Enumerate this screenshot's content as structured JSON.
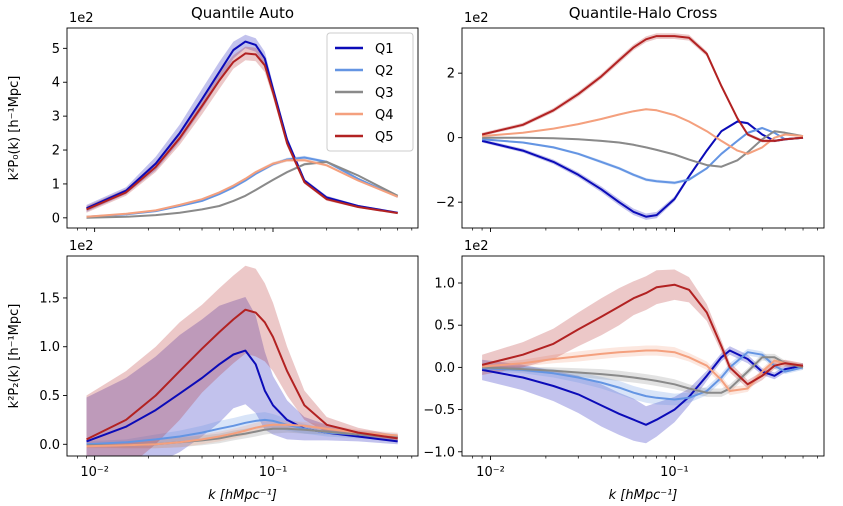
{
  "figure": {
    "title_left": "Quantile Auto",
    "title_right": "Quantile-Halo Cross",
    "xlabel": "k [hMpc⁻¹]",
    "ylabel_top": "k²P₀(k) [h⁻¹Mpc]",
    "ylabel_bottom": "k²P₂(k) [h⁻¹Mpc]",
    "scale_label": "1e2"
  },
  "legend": {
    "entries": [
      {
        "label": "Q1",
        "color": "#0b0bb8"
      },
      {
        "label": "Q2",
        "color": "#6495e3"
      },
      {
        "label": "Q3",
        "color": "#8a8a8a"
      },
      {
        "label": "Q4",
        "color": "#f4a07e"
      },
      {
        "label": "Q5",
        "color": "#b22222"
      }
    ]
  },
  "chart_data": [
    {
      "id": "auto-p0",
      "type": "line",
      "title": "Quantile Auto",
      "xlabel": "",
      "ylabel": "k²P₀(k) [h⁻¹Mpc]",
      "xscale": "log",
      "xlim": [
        0.007,
        0.65
      ],
      "ylim": [
        -0.3,
        5.6
      ],
      "xticks": [
        0.01,
        0.1
      ],
      "xtick_labels": [
        "",
        ""
      ],
      "yticks": [
        0,
        1,
        2,
        3,
        4,
        5
      ],
      "ytick_labels": [
        "0",
        "1",
        "2",
        "3",
        "4",
        "5"
      ],
      "scale_label": "1e2",
      "legend": "top-right",
      "x": [
        0.009,
        0.015,
        0.022,
        0.03,
        0.04,
        0.05,
        0.06,
        0.07,
        0.08,
        0.09,
        0.1,
        0.12,
        0.15,
        0.2,
        0.3,
        0.5
      ],
      "series": [
        {
          "name": "Q1",
          "color": "#0b0bb8",
          "values": [
            0.28,
            0.8,
            1.6,
            2.5,
            3.5,
            4.3,
            4.95,
            5.2,
            5.1,
            4.7,
            3.8,
            2.3,
            1.1,
            0.6,
            0.35,
            0.15
          ],
          "band": [
            0.1,
            0.1,
            0.2,
            0.25,
            0.3,
            0.3,
            0.25,
            0.2,
            0.2,
            0.2,
            0.15,
            0.1,
            0.05,
            0.05,
            0.03,
            0.02
          ]
        },
        {
          "name": "Q2",
          "color": "#6495e3",
          "values": [
            0.03,
            0.1,
            0.2,
            0.35,
            0.5,
            0.7,
            0.9,
            1.1,
            1.3,
            1.45,
            1.58,
            1.72,
            1.78,
            1.65,
            1.15,
            0.62
          ],
          "band": [
            0.01,
            0.01,
            0.02,
            0.02,
            0.03,
            0.03,
            0.04,
            0.04,
            0.04,
            0.05,
            0.05,
            0.05,
            0.05,
            0.04,
            0.03,
            0.02
          ]
        },
        {
          "name": "Q3",
          "color": "#8a8a8a",
          "values": [
            0.0,
            0.03,
            0.08,
            0.15,
            0.25,
            0.35,
            0.5,
            0.65,
            0.82,
            0.98,
            1.12,
            1.35,
            1.58,
            1.65,
            1.25,
            0.65
          ],
          "band": [
            0.01,
            0.01,
            0.01,
            0.02,
            0.02,
            0.02,
            0.03,
            0.03,
            0.03,
            0.03,
            0.03,
            0.04,
            0.04,
            0.04,
            0.03,
            0.02
          ]
        },
        {
          "name": "Q4",
          "color": "#f4a07e",
          "values": [
            0.03,
            0.12,
            0.22,
            0.38,
            0.55,
            0.75,
            0.95,
            1.15,
            1.35,
            1.48,
            1.6,
            1.7,
            1.7,
            1.55,
            1.1,
            0.62
          ],
          "band": [
            0.01,
            0.01,
            0.02,
            0.02,
            0.03,
            0.03,
            0.04,
            0.04,
            0.04,
            0.05,
            0.05,
            0.05,
            0.05,
            0.04,
            0.03,
            0.02
          ]
        },
        {
          "name": "Q5",
          "color": "#b22222",
          "values": [
            0.25,
            0.75,
            1.5,
            2.35,
            3.3,
            4.05,
            4.6,
            4.85,
            4.82,
            4.5,
            3.7,
            2.2,
            1.05,
            0.55,
            0.32,
            0.14
          ],
          "band": [
            0.1,
            0.1,
            0.15,
            0.2,
            0.25,
            0.25,
            0.2,
            0.2,
            0.2,
            0.2,
            0.15,
            0.1,
            0.05,
            0.05,
            0.03,
            0.02
          ]
        }
      ]
    },
    {
      "id": "cross-p0",
      "type": "line",
      "title": "Quantile-Halo Cross",
      "xlabel": "",
      "ylabel": "",
      "xscale": "log",
      "xlim": [
        0.007,
        0.65
      ],
      "ylim": [
        -2.8,
        3.4
      ],
      "xticks": [
        0.01,
        0.1
      ],
      "xtick_labels": [
        "",
        ""
      ],
      "yticks": [
        -2,
        0,
        2
      ],
      "ytick_labels": [
        "−2",
        "0",
        "2"
      ],
      "scale_label": "1e2",
      "x": [
        0.009,
        0.015,
        0.022,
        0.03,
        0.04,
        0.05,
        0.06,
        0.07,
        0.08,
        0.1,
        0.12,
        0.15,
        0.18,
        0.22,
        0.25,
        0.3,
        0.35,
        0.4,
        0.5
      ],
      "series": [
        {
          "name": "Q1",
          "color": "#0b0bb8",
          "values": [
            -0.1,
            -0.4,
            -0.75,
            -1.15,
            -1.6,
            -2.0,
            -2.3,
            -2.45,
            -2.4,
            -1.9,
            -1.2,
            -0.4,
            0.2,
            0.5,
            0.45,
            0.1,
            -0.1,
            -0.05,
            0.0
          ],
          "band": [
            0.05,
            0.06,
            0.07,
            0.08,
            0.09,
            0.1,
            0.1,
            0.1,
            0.1,
            0.08,
            0.06,
            0.05,
            0.04,
            0.04,
            0.04,
            0.04,
            0.03,
            0.03,
            0.03
          ]
        },
        {
          "name": "Q2",
          "color": "#6495e3",
          "values": [
            -0.05,
            -0.15,
            -0.3,
            -0.5,
            -0.75,
            -0.95,
            -1.15,
            -1.3,
            -1.35,
            -1.4,
            -1.3,
            -0.95,
            -0.5,
            -0.1,
            0.15,
            0.3,
            0.15,
            -0.05,
            0.0
          ],
          "band": [
            0.03,
            0.03,
            0.04,
            0.04,
            0.05,
            0.05,
            0.05,
            0.05,
            0.05,
            0.05,
            0.05,
            0.04,
            0.04,
            0.04,
            0.04,
            0.04,
            0.03,
            0.03,
            0.03
          ]
        },
        {
          "name": "Q3",
          "color": "#8a8a8a",
          "values": [
            0.0,
            0.0,
            -0.02,
            -0.05,
            -0.1,
            -0.15,
            -0.22,
            -0.3,
            -0.38,
            -0.52,
            -0.68,
            -0.85,
            -0.9,
            -0.7,
            -0.45,
            -0.05,
            0.2,
            0.15,
            0.05
          ],
          "band": [
            0.02,
            0.02,
            0.02,
            0.02,
            0.03,
            0.03,
            0.03,
            0.03,
            0.03,
            0.03,
            0.03,
            0.03,
            0.03,
            0.03,
            0.03,
            0.03,
            0.03,
            0.03,
            0.02
          ]
        },
        {
          "name": "Q4",
          "color": "#f4a07e",
          "values": [
            0.05,
            0.15,
            0.28,
            0.42,
            0.58,
            0.72,
            0.82,
            0.88,
            0.85,
            0.7,
            0.5,
            0.2,
            -0.1,
            -0.4,
            -0.5,
            -0.3,
            0.0,
            0.1,
            0.05
          ],
          "band": [
            0.02,
            0.02,
            0.02,
            0.03,
            0.03,
            0.03,
            0.03,
            0.03,
            0.03,
            0.03,
            0.03,
            0.03,
            0.03,
            0.03,
            0.03,
            0.03,
            0.03,
            0.03,
            0.02
          ]
        },
        {
          "name": "Q5",
          "color": "#b22222",
          "values": [
            0.1,
            0.4,
            0.85,
            1.35,
            1.9,
            2.4,
            2.8,
            3.05,
            3.15,
            3.15,
            3.1,
            2.6,
            1.6,
            0.6,
            0.1,
            -0.1,
            -0.1,
            -0.05,
            0.0
          ],
          "band": [
            0.05,
            0.06,
            0.07,
            0.08,
            0.08,
            0.09,
            0.09,
            0.09,
            0.09,
            0.09,
            0.09,
            0.08,
            0.07,
            0.06,
            0.05,
            0.05,
            0.04,
            0.04,
            0.03
          ]
        }
      ]
    },
    {
      "id": "auto-p2",
      "type": "line",
      "title": "",
      "xlabel": "k [hMpc⁻¹]",
      "ylabel": "k²P₂(k) [h⁻¹Mpc]",
      "xscale": "log",
      "xlim": [
        0.007,
        0.65
      ],
      "ylim": [
        -0.12,
        1.93
      ],
      "xticks": [
        0.01,
        0.1
      ],
      "xtick_labels": [
        "10⁻²",
        "10⁻¹"
      ],
      "yticks": [
        0,
        0.5,
        1.0,
        1.5
      ],
      "ytick_labels": [
        "0.0",
        "0.5",
        "1.0",
        "1.5"
      ],
      "scale_label": "1e2",
      "x": [
        0.009,
        0.015,
        0.022,
        0.03,
        0.04,
        0.05,
        0.06,
        0.07,
        0.08,
        0.09,
        0.1,
        0.12,
        0.15,
        0.2,
        0.3,
        0.5
      ],
      "series": [
        {
          "name": "Q1",
          "color": "#0b0bb8",
          "values": [
            0.03,
            0.18,
            0.35,
            0.52,
            0.68,
            0.82,
            0.92,
            0.96,
            0.82,
            0.55,
            0.4,
            0.25,
            0.16,
            0.12,
            0.08,
            0.03
          ],
          "band": [
            0.45,
            0.5,
            0.55,
            0.6,
            0.6,
            0.6,
            0.55,
            0.55,
            0.5,
            0.4,
            0.3,
            0.2,
            0.12,
            0.08,
            0.05,
            0.03
          ]
        },
        {
          "name": "Q2",
          "color": "#6495e3",
          "values": [
            0.0,
            0.02,
            0.05,
            0.08,
            0.12,
            0.16,
            0.19,
            0.22,
            0.24,
            0.25,
            0.24,
            0.2,
            0.16,
            0.12,
            0.1,
            0.08
          ],
          "band": [
            0.03,
            0.03,
            0.05,
            0.06,
            0.07,
            0.08,
            0.08,
            0.08,
            0.08,
            0.08,
            0.07,
            0.06,
            0.05,
            0.04,
            0.04,
            0.03
          ]
        },
        {
          "name": "Q3",
          "color": "#8a8a8a",
          "values": [
            -0.01,
            -0.01,
            0.0,
            0.02,
            0.04,
            0.06,
            0.09,
            0.11,
            0.13,
            0.15,
            0.16,
            0.16,
            0.15,
            0.13,
            0.1,
            0.07
          ],
          "band": [
            0.02,
            0.03,
            0.04,
            0.05,
            0.05,
            0.05,
            0.05,
            0.05,
            0.05,
            0.05,
            0.05,
            0.04,
            0.04,
            0.03,
            0.03,
            0.03
          ]
        },
        {
          "name": "Q4",
          "color": "#f4a07e",
          "values": [
            -0.02,
            -0.01,
            0.0,
            0.02,
            0.05,
            0.08,
            0.11,
            0.14,
            0.17,
            0.19,
            0.2,
            0.2,
            0.19,
            0.16,
            0.12,
            0.09
          ],
          "band": [
            0.02,
            0.03,
            0.04,
            0.05,
            0.05,
            0.05,
            0.05,
            0.05,
            0.05,
            0.05,
            0.05,
            0.04,
            0.04,
            0.04,
            0.03,
            0.03
          ]
        },
        {
          "name": "Q5",
          "color": "#b22222",
          "values": [
            0.05,
            0.25,
            0.5,
            0.75,
            0.98,
            1.15,
            1.28,
            1.38,
            1.35,
            1.25,
            1.1,
            0.75,
            0.4,
            0.2,
            0.12,
            0.06
          ],
          "band": [
            0.45,
            0.5,
            0.5,
            0.5,
            0.45,
            0.45,
            0.45,
            0.45,
            0.45,
            0.4,
            0.35,
            0.25,
            0.15,
            0.08,
            0.05,
            0.03
          ]
        }
      ]
    },
    {
      "id": "cross-p2",
      "type": "line",
      "title": "",
      "xlabel": "k [hMpc⁻¹]",
      "ylabel": "",
      "xscale": "log",
      "xlim": [
        0.007,
        0.65
      ],
      "ylim": [
        -1.05,
        1.32
      ],
      "xticks": [
        0.01,
        0.1
      ],
      "xtick_labels": [
        "10⁻²",
        "10⁻¹"
      ],
      "yticks": [
        -1.0,
        -0.5,
        0.0,
        0.5,
        1.0
      ],
      "ytick_labels": [
        "−1.0",
        "−0.5",
        "0.0",
        "0.5",
        "1.0"
      ],
      "scale_label": "1e2",
      "x": [
        0.009,
        0.015,
        0.022,
        0.03,
        0.04,
        0.05,
        0.06,
        0.07,
        0.08,
        0.1,
        0.12,
        0.15,
        0.18,
        0.2,
        0.25,
        0.3,
        0.35,
        0.4,
        0.5
      ],
      "series": [
        {
          "name": "Q1",
          "color": "#0b0bb8",
          "values": [
            -0.03,
            -0.12,
            -0.22,
            -0.32,
            -0.45,
            -0.55,
            -0.62,
            -0.68,
            -0.62,
            -0.5,
            -0.35,
            -0.1,
            0.12,
            0.2,
            0.1,
            -0.05,
            -0.1,
            -0.02,
            0.02
          ],
          "band": [
            0.12,
            0.15,
            0.18,
            0.22,
            0.25,
            0.25,
            0.25,
            0.22,
            0.2,
            0.15,
            0.1,
            0.06,
            0.05,
            0.05,
            0.05,
            0.04,
            0.04,
            0.04,
            0.03
          ]
        },
        {
          "name": "Q2",
          "color": "#6495e3",
          "values": [
            -0.01,
            -0.03,
            -0.07,
            -0.12,
            -0.18,
            -0.24,
            -0.3,
            -0.34,
            -0.36,
            -0.38,
            -0.36,
            -0.28,
            -0.12,
            0.0,
            0.18,
            0.15,
            0.02,
            -0.05,
            0.0
          ],
          "band": [
            0.03,
            0.04,
            0.05,
            0.06,
            0.07,
            0.08,
            0.08,
            0.08,
            0.08,
            0.07,
            0.06,
            0.05,
            0.05,
            0.05,
            0.04,
            0.04,
            0.04,
            0.03,
            0.03
          ]
        },
        {
          "name": "Q3",
          "color": "#8a8a8a",
          "values": [
            0.0,
            -0.02,
            -0.04,
            -0.06,
            -0.08,
            -0.1,
            -0.12,
            -0.14,
            -0.16,
            -0.2,
            -0.25,
            -0.3,
            -0.3,
            -0.25,
            -0.05,
            0.12,
            0.12,
            0.05,
            0.0
          ],
          "band": [
            0.02,
            0.03,
            0.04,
            0.05,
            0.06,
            0.06,
            0.06,
            0.06,
            0.06,
            0.06,
            0.05,
            0.05,
            0.05,
            0.05,
            0.04,
            0.04,
            0.04,
            0.03,
            0.03
          ]
        },
        {
          "name": "Q4",
          "color": "#f4a07e",
          "values": [
            0.01,
            0.05,
            0.1,
            0.13,
            0.16,
            0.18,
            0.19,
            0.2,
            0.2,
            0.18,
            0.12,
            0.02,
            -0.15,
            -0.28,
            -0.25,
            -0.05,
            0.08,
            0.05,
            0.02
          ],
          "band": [
            0.03,
            0.04,
            0.05,
            0.06,
            0.06,
            0.06,
            0.06,
            0.06,
            0.06,
            0.06,
            0.05,
            0.05,
            0.05,
            0.05,
            0.04,
            0.04,
            0.04,
            0.03,
            0.03
          ]
        },
        {
          "name": "Q5",
          "color": "#b22222",
          "values": [
            0.03,
            0.15,
            0.28,
            0.45,
            0.6,
            0.72,
            0.82,
            0.88,
            0.95,
            0.98,
            0.92,
            0.65,
            0.25,
            0.0,
            -0.2,
            -0.1,
            0.02,
            0.05,
            0.02
          ],
          "band": [
            0.12,
            0.15,
            0.18,
            0.2,
            0.22,
            0.22,
            0.2,
            0.2,
            0.2,
            0.18,
            0.15,
            0.1,
            0.07,
            0.06,
            0.05,
            0.05,
            0.04,
            0.04,
            0.03
          ]
        }
      ]
    }
  ]
}
